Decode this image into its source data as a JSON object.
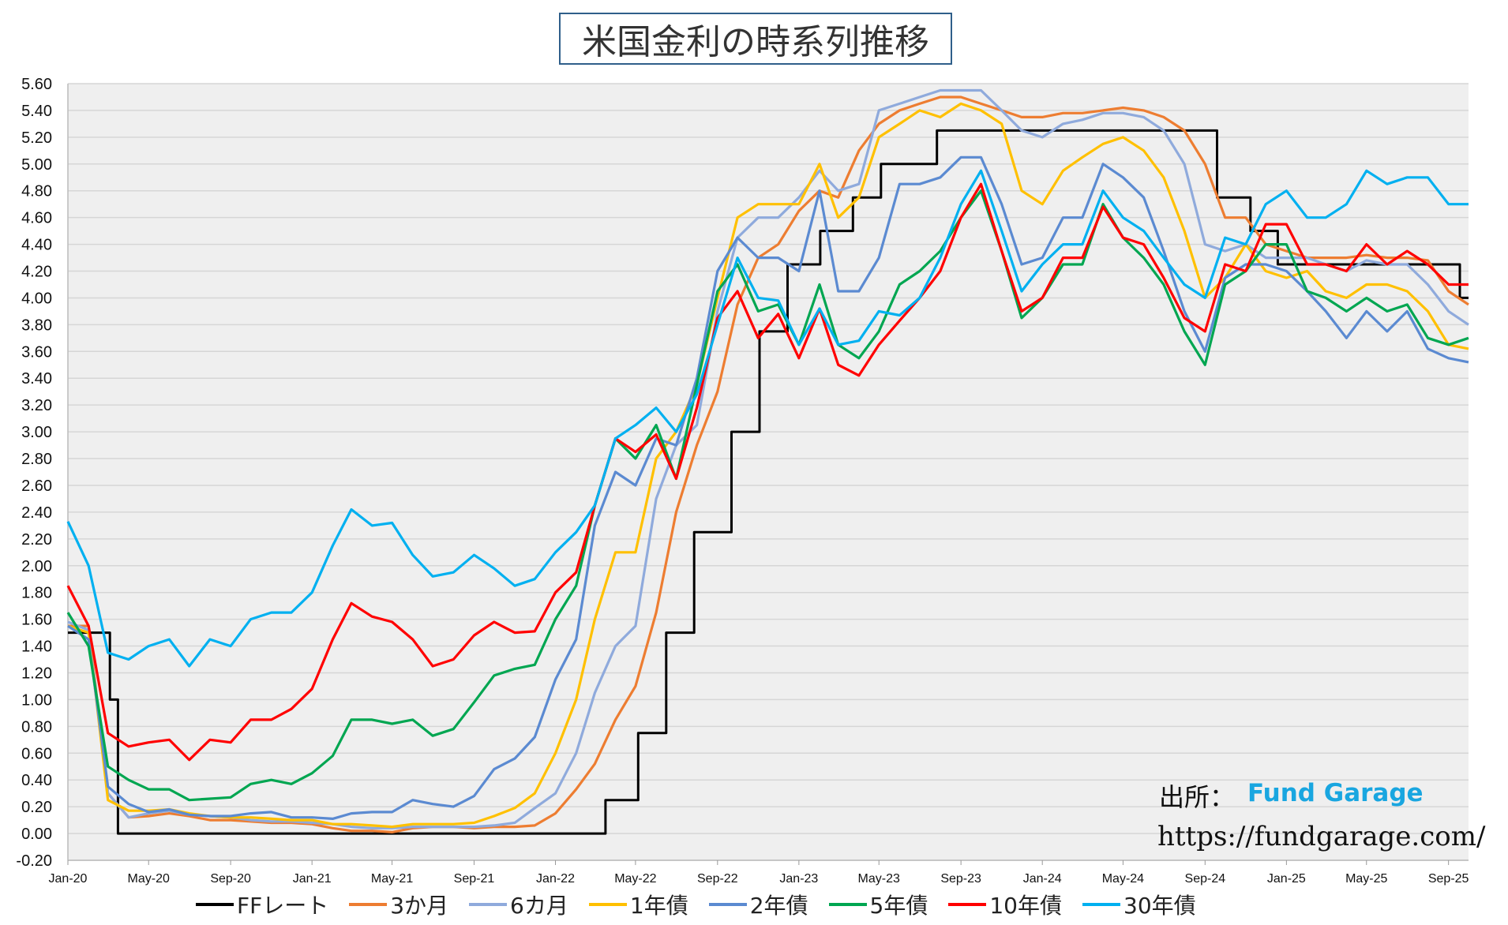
{
  "title": "米国金利の時系列推移",
  "source": {
    "label": "出所：",
    "name": "Fund Garage",
    "url": "https://fundgarage.com/"
  },
  "chart_data": {
    "type": "line",
    "title": "米国金利の時系列推移",
    "ylim": [
      -0.2,
      5.6
    ],
    "ytick_step": 0.2,
    "xlim": [
      "2020-01",
      "2025-10"
    ],
    "x_tick_labels": [
      "Jan-20",
      "May-20",
      "Sep-20",
      "Jan-21",
      "May-21",
      "Sep-21",
      "Jan-22",
      "May-22",
      "Sep-22",
      "Jan-23",
      "May-23",
      "Sep-23",
      "Jan-24",
      "May-24",
      "Sep-24",
      "Jan-25",
      "May-25",
      "Sep-25"
    ],
    "grid": true,
    "legend_position": "bottom",
    "x_dates": [
      "2020-01",
      "2020-02",
      "2020-03",
      "2020-04",
      "2020-05",
      "2020-06",
      "2020-07",
      "2020-08",
      "2020-09",
      "2020-10",
      "2020-11",
      "2020-12",
      "2021-01",
      "2021-02",
      "2021-03",
      "2021-04",
      "2021-05",
      "2021-06",
      "2021-07",
      "2021-08",
      "2021-09",
      "2021-10",
      "2021-11",
      "2021-12",
      "2022-01",
      "2022-02",
      "2022-03",
      "2022-04",
      "2022-05",
      "2022-06",
      "2022-07",
      "2022-08",
      "2022-09",
      "2022-10",
      "2022-11",
      "2022-12",
      "2023-01",
      "2023-02",
      "2023-03",
      "2023-04",
      "2023-05",
      "2023-06",
      "2023-07",
      "2023-08",
      "2023-09",
      "2023-10",
      "2023-11",
      "2023-12",
      "2024-01",
      "2024-02",
      "2024-03",
      "2024-04",
      "2024-05",
      "2024-06",
      "2024-07",
      "2024-08",
      "2024-09",
      "2024-10",
      "2024-11",
      "2024-12",
      "2025-01",
      "2025-02",
      "2025-03",
      "2025-04",
      "2025-05",
      "2025-06",
      "2025-07",
      "2025-08",
      "2025-09",
      "2025-10"
    ],
    "series": [
      {
        "name": "FFレート",
        "color": "#000000",
        "step": true,
        "x": [
          "2020-01",
          "2020-03-04",
          "2020-03-16",
          "2022-03-17",
          "2022-05-05",
          "2022-06-16",
          "2022-07-28",
          "2022-09-22",
          "2022-11-03",
          "2022-12-15",
          "2023-02-02",
          "2023-03-23",
          "2023-05-04",
          "2023-07-27",
          "2024-09-19",
          "2024-11-08",
          "2024-12-19",
          "2025-09-18",
          "2025-10"
        ],
        "values": [
          1.5,
          1.0,
          0.0,
          0.25,
          0.75,
          1.5,
          2.25,
          3.0,
          3.75,
          4.25,
          4.5,
          4.75,
          5.0,
          5.25,
          4.75,
          4.5,
          4.25,
          4.0,
          4.0
        ]
      },
      {
        "name": "3か月",
        "color": "#ed7d31",
        "values": [
          1.55,
          1.55,
          0.3,
          0.12,
          0.13,
          0.15,
          0.13,
          0.1,
          0.1,
          0.09,
          0.08,
          0.08,
          0.07,
          0.04,
          0.02,
          0.02,
          0.01,
          0.04,
          0.05,
          0.05,
          0.04,
          0.05,
          0.05,
          0.06,
          0.15,
          0.33,
          0.52,
          0.85,
          1.1,
          1.65,
          2.4,
          2.9,
          3.3,
          3.95,
          4.3,
          4.4,
          4.65,
          4.8,
          4.75,
          5.1,
          5.3,
          5.4,
          5.45,
          5.5,
          5.5,
          5.45,
          5.4,
          5.35,
          5.35,
          5.38,
          5.38,
          5.4,
          5.42,
          5.4,
          5.35,
          5.25,
          5.0,
          4.6,
          4.6,
          4.4,
          4.35,
          4.3,
          4.3,
          4.3,
          4.32,
          4.3,
          4.3,
          4.28,
          4.05,
          3.95
        ]
      },
      {
        "name": "6カ月",
        "color": "#8faadc",
        "values": [
          1.58,
          1.52,
          0.3,
          0.12,
          0.15,
          0.17,
          0.14,
          0.13,
          0.12,
          0.1,
          0.09,
          0.09,
          0.08,
          0.07,
          0.05,
          0.04,
          0.04,
          0.05,
          0.05,
          0.05,
          0.05,
          0.06,
          0.08,
          0.19,
          0.3,
          0.6,
          1.05,
          1.4,
          1.55,
          2.5,
          2.9,
          3.05,
          3.9,
          4.45,
          4.6,
          4.6,
          4.75,
          4.95,
          4.8,
          4.85,
          5.4,
          5.45,
          5.5,
          5.55,
          5.55,
          5.55,
          5.4,
          5.25,
          5.2,
          5.3,
          5.33,
          5.38,
          5.38,
          5.35,
          5.25,
          5.0,
          4.4,
          4.35,
          4.4,
          4.3,
          4.3,
          4.3,
          4.25,
          4.2,
          4.28,
          4.25,
          4.25,
          4.1,
          3.9,
          3.8
        ]
      },
      {
        "name": "1年債",
        "color": "#ffc000",
        "values": [
          1.55,
          1.5,
          0.25,
          0.17,
          0.17,
          0.18,
          0.15,
          0.13,
          0.12,
          0.12,
          0.11,
          0.1,
          0.1,
          0.07,
          0.07,
          0.06,
          0.05,
          0.07,
          0.07,
          0.07,
          0.08,
          0.13,
          0.19,
          0.3,
          0.6,
          1.0,
          1.6,
          2.1,
          2.1,
          2.8,
          3.0,
          3.35,
          4.0,
          4.6,
          4.7,
          4.7,
          4.7,
          5.0,
          4.6,
          4.75,
          5.2,
          5.3,
          5.4,
          5.35,
          5.45,
          5.4,
          5.3,
          4.8,
          4.7,
          4.95,
          5.05,
          5.15,
          5.2,
          5.1,
          4.9,
          4.5,
          4.0,
          4.15,
          4.4,
          4.2,
          4.15,
          4.2,
          4.05,
          4.0,
          4.1,
          4.1,
          4.05,
          3.9,
          3.65,
          3.62
        ]
      },
      {
        "name": "2年債",
        "color": "#5b8ad1",
        "values": [
          1.55,
          1.45,
          0.35,
          0.22,
          0.16,
          0.18,
          0.14,
          0.13,
          0.13,
          0.15,
          0.16,
          0.12,
          0.12,
          0.11,
          0.15,
          0.16,
          0.16,
          0.25,
          0.22,
          0.2,
          0.28,
          0.48,
          0.56,
          0.72,
          1.15,
          1.45,
          2.3,
          2.7,
          2.6,
          2.95,
          2.9,
          3.4,
          4.2,
          4.45,
          4.3,
          4.3,
          4.2,
          4.8,
          4.05,
          4.05,
          4.3,
          4.85,
          4.85,
          4.9,
          5.05,
          5.05,
          4.7,
          4.25,
          4.3,
          4.6,
          4.6,
          5.0,
          4.9,
          4.75,
          4.35,
          3.9,
          3.6,
          4.15,
          4.25,
          4.25,
          4.2,
          4.05,
          3.9,
          3.7,
          3.9,
          3.75,
          3.9,
          3.62,
          3.55,
          3.52
        ]
      },
      {
        "name": "5年債",
        "color": "#00a651",
        "values": [
          1.65,
          1.4,
          0.5,
          0.4,
          0.33,
          0.33,
          0.25,
          0.26,
          0.27,
          0.37,
          0.4,
          0.37,
          0.45,
          0.58,
          0.85,
          0.85,
          0.82,
          0.85,
          0.73,
          0.78,
          0.98,
          1.18,
          1.23,
          1.26,
          1.6,
          1.85,
          2.45,
          2.95,
          2.8,
          3.05,
          2.65,
          3.35,
          4.05,
          4.25,
          3.9,
          3.95,
          3.65,
          4.1,
          3.65,
          3.55,
          3.75,
          4.1,
          4.2,
          4.35,
          4.6,
          4.8,
          4.35,
          3.85,
          4.0,
          4.25,
          4.25,
          4.7,
          4.45,
          4.3,
          4.1,
          3.75,
          3.5,
          4.1,
          4.2,
          4.4,
          4.4,
          4.05,
          4.0,
          3.9,
          4.0,
          3.9,
          3.95,
          3.7,
          3.65,
          3.7
        ]
      },
      {
        "name": "10年債",
        "color": "#ff0000",
        "values": [
          1.85,
          1.55,
          0.75,
          0.65,
          0.68,
          0.7,
          0.55,
          0.7,
          0.68,
          0.85,
          0.85,
          0.93,
          1.08,
          1.45,
          1.72,
          1.62,
          1.58,
          1.45,
          1.25,
          1.3,
          1.48,
          1.58,
          1.5,
          1.51,
          1.8,
          1.95,
          2.45,
          2.95,
          2.85,
          2.98,
          2.65,
          3.18,
          3.85,
          4.05,
          3.7,
          3.88,
          3.55,
          3.92,
          3.5,
          3.42,
          3.65,
          3.83,
          4.0,
          4.2,
          4.6,
          4.85,
          4.35,
          3.9,
          4.0,
          4.3,
          4.3,
          4.68,
          4.45,
          4.4,
          4.15,
          3.85,
          3.75,
          4.25,
          4.2,
          4.55,
          4.55,
          4.25,
          4.25,
          4.2,
          4.4,
          4.25,
          4.35,
          4.25,
          4.1,
          4.1
        ]
      },
      {
        "name": "30年債",
        "color": "#00b0f0",
        "values": [
          2.33,
          2.0,
          1.35,
          1.3,
          1.4,
          1.45,
          1.25,
          1.45,
          1.4,
          1.6,
          1.65,
          1.65,
          1.8,
          2.15,
          2.42,
          2.3,
          2.32,
          2.08,
          1.92,
          1.95,
          2.08,
          1.98,
          1.85,
          1.9,
          2.1,
          2.25,
          2.45,
          2.95,
          3.05,
          3.18,
          3.0,
          3.28,
          3.8,
          4.3,
          4.0,
          3.98,
          3.65,
          3.92,
          3.65,
          3.68,
          3.9,
          3.87,
          4.0,
          4.3,
          4.7,
          4.95,
          4.5,
          4.05,
          4.25,
          4.4,
          4.4,
          4.8,
          4.6,
          4.5,
          4.3,
          4.1,
          4.0,
          4.45,
          4.4,
          4.7,
          4.8,
          4.6,
          4.6,
          4.7,
          4.95,
          4.85,
          4.9,
          4.9,
          4.7,
          4.7
        ]
      }
    ]
  },
  "legend": [
    {
      "label": "FFレート",
      "color": "#000000"
    },
    {
      "label": "3か月",
      "color": "#ed7d31"
    },
    {
      "label": "6カ月",
      "color": "#8faadc"
    },
    {
      "label": "1年債",
      "color": "#ffc000"
    },
    {
      "label": "2年債",
      "color": "#5b8ad1"
    },
    {
      "label": "5年債",
      "color": "#00a651"
    },
    {
      "label": "10年債",
      "color": "#ff0000"
    },
    {
      "label": "30年債",
      "color": "#00b0f0"
    }
  ]
}
